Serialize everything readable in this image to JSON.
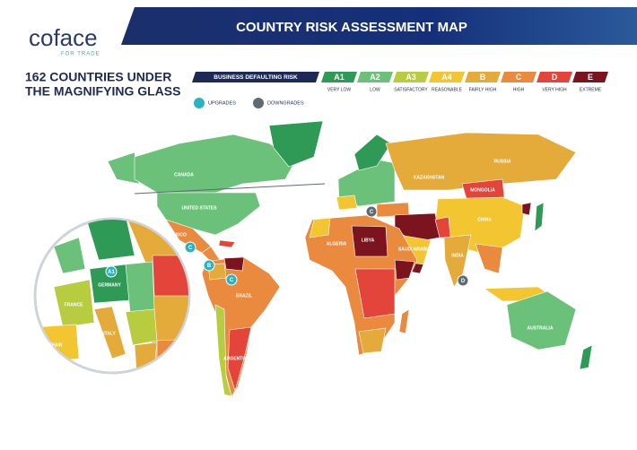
{
  "header": {
    "logo": "coface",
    "logo_tagline": "FOR TRADE",
    "title": "COUNTRY RISK ASSESSMENT MAP"
  },
  "subtitle": [
    "162 COUNTRIES UNDER",
    "THE MAGNIFYING GLASS"
  ],
  "legend": {
    "heading": "BUSINESS DEFAULTING RISK",
    "levels": [
      {
        "code": "A1",
        "label": "VERY LOW",
        "color": "#2e9a55"
      },
      {
        "code": "A2",
        "label": "LOW",
        "color": "#6cc17a"
      },
      {
        "code": "A3",
        "label": "SATISFACTORY",
        "color": "#b7cc3f"
      },
      {
        "code": "A4",
        "label": "REASONABLE",
        "color": "#f2c531"
      },
      {
        "code": "B",
        "label": "FAIRLY HIGH",
        "color": "#e4aa3a"
      },
      {
        "code": "C",
        "label": "HIGH",
        "color": "#ea8a3f"
      },
      {
        "code": "D",
        "label": "VERY HIGH",
        "color": "#e3453a"
      },
      {
        "code": "E",
        "label": "EXTREME",
        "color": "#7c1420"
      }
    ]
  },
  "changes": [
    {
      "label": "UPGRADES",
      "color": "#2db3c0",
      "markers": [
        "C",
        "B",
        "C",
        "A1"
      ]
    },
    {
      "label": "DOWNGRADES",
      "color": "#5e6b73",
      "markers": [
        "C",
        "D"
      ]
    }
  ],
  "map": {
    "labels": [
      "CANADA",
      "UNITED STATES",
      "MEXICO",
      "BRAZIL",
      "ARGENTINA",
      "RUSSIA",
      "KAZAKHSTAN",
      "MONGOLIA",
      "CHINA",
      "INDIA",
      "AUSTRALIA",
      "ALGERIA",
      "LIBYA",
      "SAUDI ARABIA",
      "FRANCE",
      "GERMANY",
      "SPAIN",
      "ITALY"
    ]
  }
}
